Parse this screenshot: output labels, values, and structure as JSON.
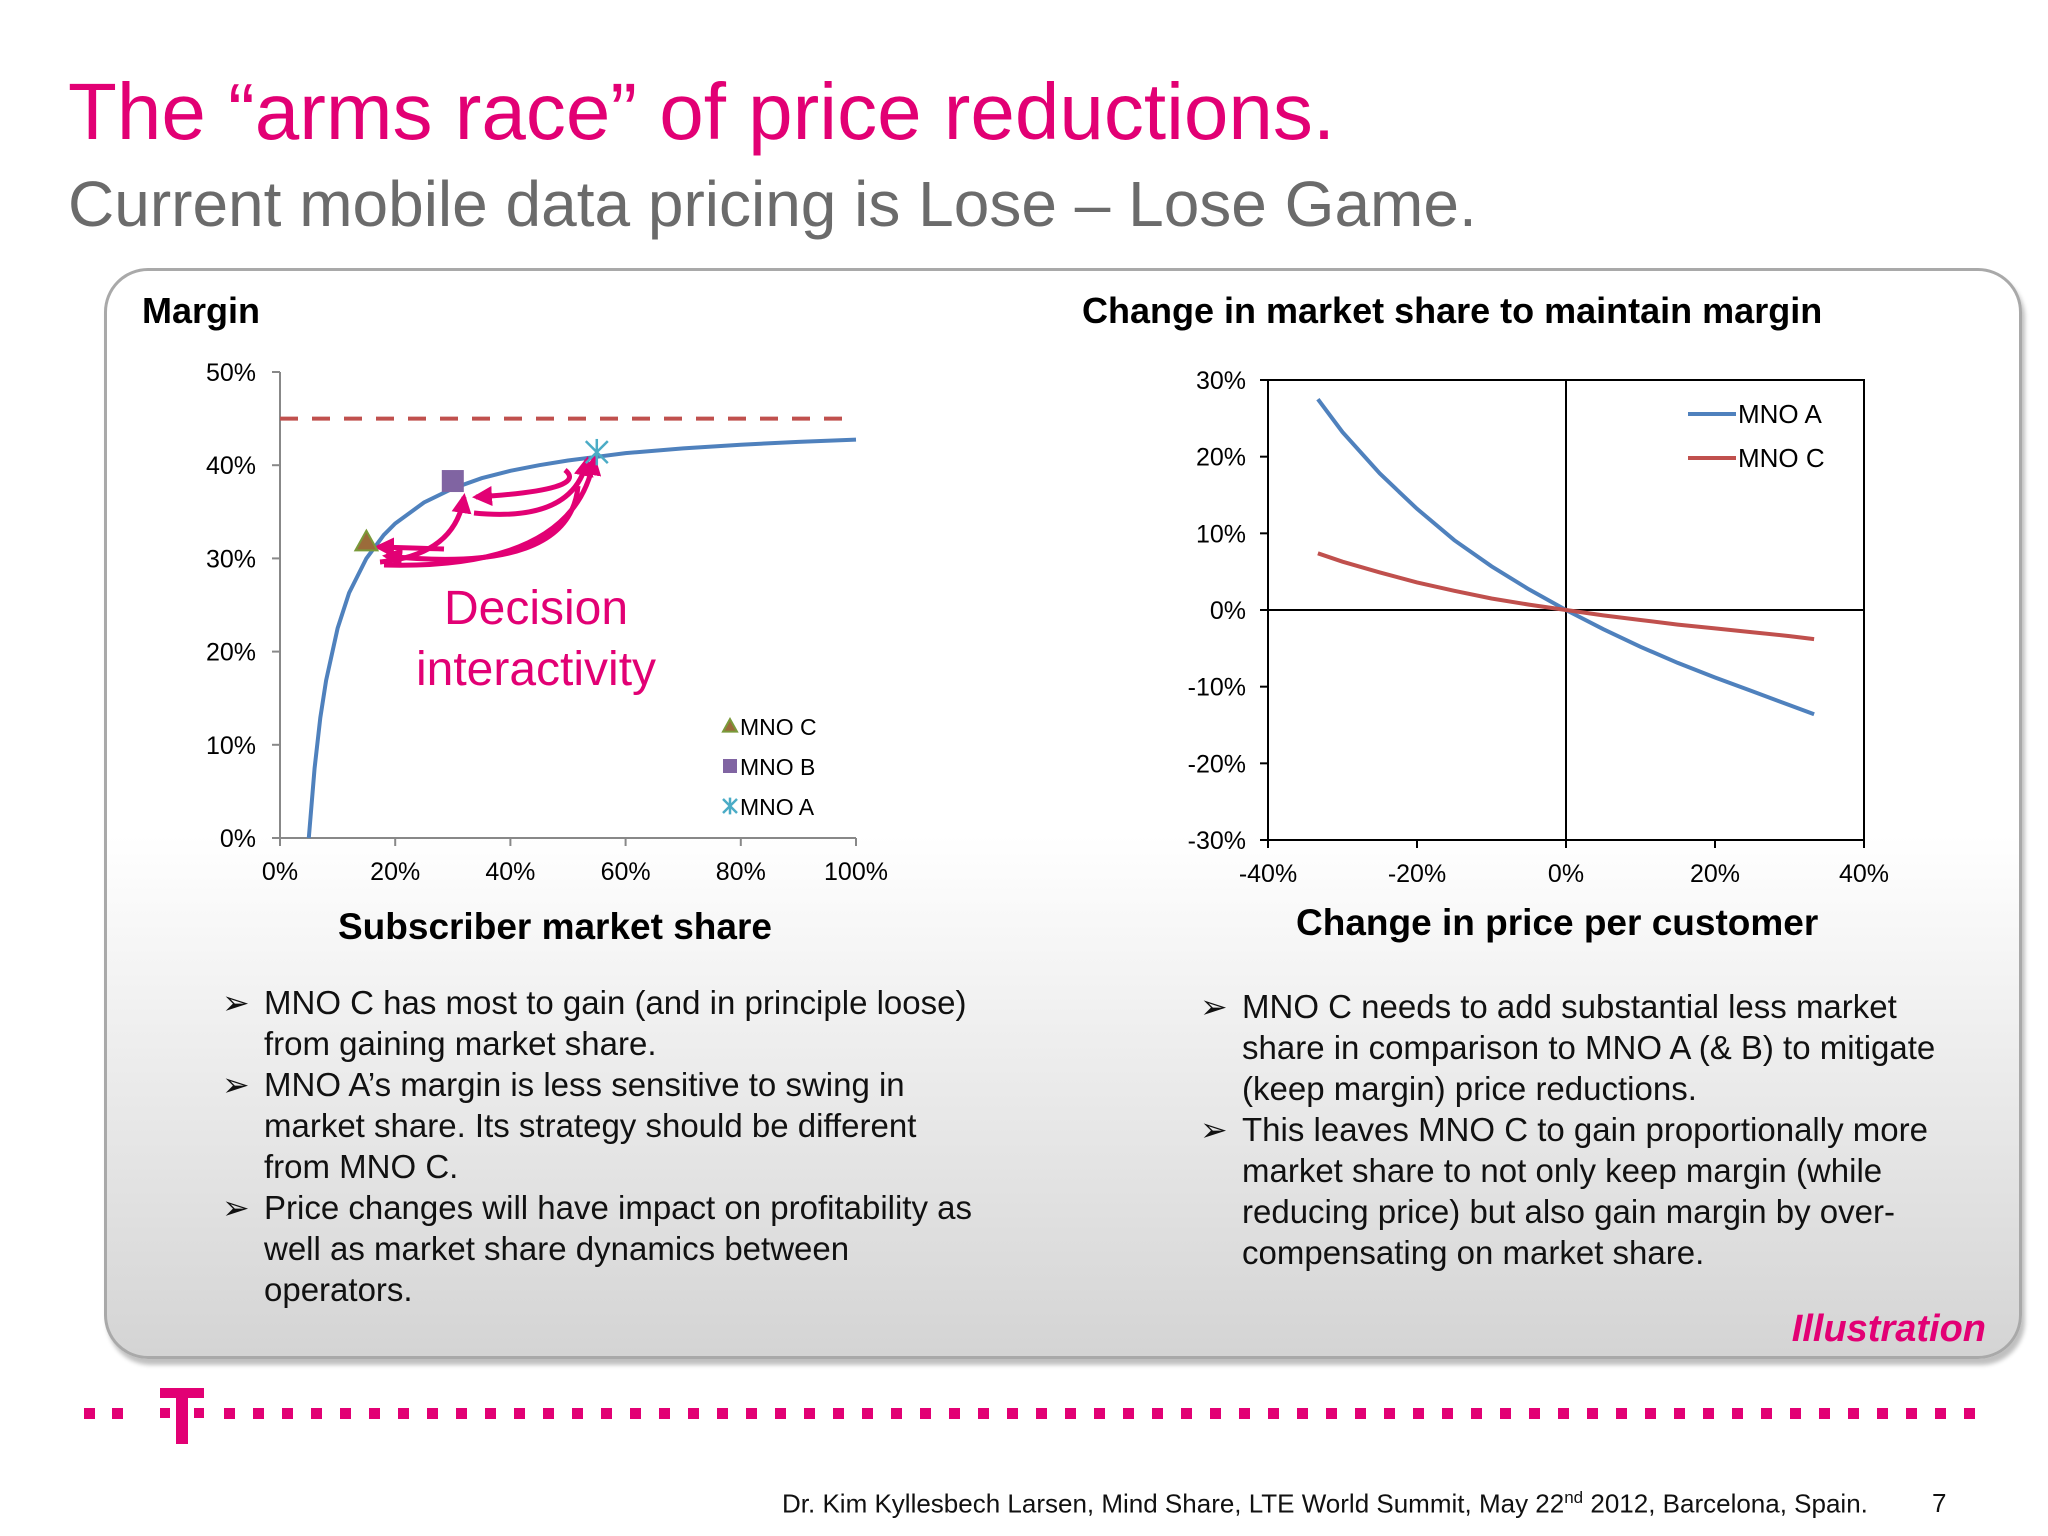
{
  "slide": {
    "title": "The “arms race” of price reductions.",
    "subtitle": "Current mobile data pricing is Lose – Lose Game.",
    "illustration_label": "Illustration",
    "footer": {
      "before_sup": "Dr. Kim Kyllesbech Larsen, Mind Share, LTE World Summit, May 22",
      "sup": "nd",
      "after_sup": " 2012, Barcelona, Spain.",
      "page_number": "7"
    },
    "left_bullets": [
      "MNO C has most to gain (and in principle loose) from gaining market share.",
      "MNO A’s margin is less sensitive to swing in market share. Its strategy should be different from MNO C.",
      "Price changes will have impact on profitability as well as market share dynamics between operators."
    ],
    "right_bullets": [
      "MNO C needs to add substantial less market share in comparison to MNO A (& B) to mitigate (keep margin) price reductions.",
      "This leaves MNO C to gain proportionally more market share to not only keep margin (while reducing price) but also gain margin by over-compensating on market share."
    ],
    "bullet_glyph": "➢",
    "colors": {
      "magenta": "#e20074",
      "curve_blue": "#4f81bd",
      "curve_red": "#c0504d",
      "dash_red": "#c0504d",
      "mno_c_marker": "#9b6b3a",
      "mno_b_marker": "#8064a2",
      "mno_a_marker": "#4bacc6"
    },
    "logo": "deutsche-telekom-t-logo"
  },
  "chart_data": [
    {
      "type": "line",
      "title": "Margin",
      "xlabel": "Subscriber market share",
      "ylabel": "",
      "xlim": [
        0,
        100
      ],
      "ylim": [
        0,
        50
      ],
      "x_ticks": [
        "0%",
        "20%",
        "40%",
        "60%",
        "80%",
        "100%"
      ],
      "y_ticks": [
        "0%",
        "10%",
        "20%",
        "30%",
        "40%",
        "50%"
      ],
      "grid": false,
      "series": [
        {
          "x": [
            5,
            6,
            7,
            8,
            10,
            12,
            15,
            18,
            20,
            25,
            30,
            35,
            40,
            45,
            50,
            55,
            60,
            70,
            80,
            90,
            100
          ],
          "values": [
            0,
            7.5,
            12.9,
            16.9,
            22.5,
            26.3,
            30,
            32.5,
            33.75,
            36,
            37.5,
            38.6,
            39.4,
            40,
            40.5,
            40.9,
            41.3,
            41.8,
            42.2,
            42.5,
            42.75
          ]
        },
        {
          "x": [
            0,
            100
          ],
          "values": [
            45,
            45
          ],
          "style": "dashed"
        }
      ],
      "markers": [
        {
          "name": "MNO C",
          "x": 15,
          "y": 31.8,
          "shape": "triangle"
        },
        {
          "name": "MNO B",
          "x": 30,
          "y": 38.3,
          "shape": "square"
        },
        {
          "name": "MNO A",
          "x": 55,
          "y": 41.4,
          "shape": "star"
        }
      ],
      "legend": [
        "MNO C",
        "MNO B",
        "MNO A"
      ],
      "legend_position": "bottom-right",
      "annotation": [
        "Decision",
        "interactivity"
      ]
    },
    {
      "type": "line",
      "title": "Change in market share to maintain margin",
      "xlabel": "Change in price per customer",
      "ylabel": "",
      "xlim": [
        -40,
        40
      ],
      "ylim": [
        -30,
        30
      ],
      "x_ticks": [
        "-40%",
        "-20%",
        "0%",
        "20%",
        "40%"
      ],
      "y_ticks": [
        "30%",
        "20%",
        "10%",
        "0%",
        "-10%",
        "-20%",
        "-30%"
      ],
      "grid": false,
      "series": [
        {
          "name": "MNO A",
          "x": [
            -33.3,
            -30,
            -25,
            -20,
            -15,
            -10,
            -5,
            0,
            5,
            10,
            15,
            20,
            25,
            30,
            33.3
          ],
          "values": [
            27.5,
            23.2,
            17.8,
            13.2,
            9.1,
            5.7,
            2.7,
            0,
            -2.5,
            -4.8,
            -6.9,
            -8.8,
            -10.6,
            -12.4,
            -13.6
          ]
        },
        {
          "name": "MNO C",
          "x": [
            -33.3,
            -30,
            -25,
            -20,
            -15,
            -10,
            -5,
            0,
            5,
            10,
            15,
            20,
            25,
            30,
            33.3
          ],
          "values": [
            7.4,
            6.3,
            4.9,
            3.6,
            2.5,
            1.5,
            0.7,
            0,
            -0.7,
            -1.3,
            -1.9,
            -2.4,
            -2.9,
            -3.4,
            -3.8
          ]
        }
      ],
      "legend_position": "top-right"
    }
  ]
}
